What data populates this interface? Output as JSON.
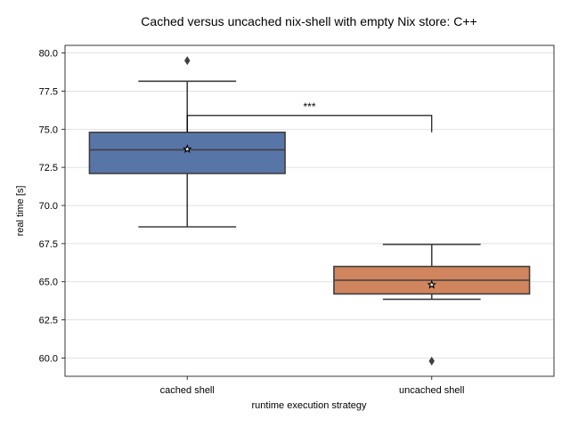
{
  "chart_data": {
    "type": "box",
    "title": "Cached versus uncached nix-shell with empty Nix store: C++",
    "xlabel": "runtime execution strategy",
    "ylabel": "real time [s]",
    "ylim": [
      58.8,
      80.5
    ],
    "yticks": [
      60.0,
      62.5,
      65.0,
      67.5,
      70.0,
      72.5,
      75.0,
      77.5,
      80.0
    ],
    "ytick_labels": [
      "60.0",
      "62.5",
      "65.0",
      "67.5",
      "70.0",
      "72.5",
      "75.0",
      "77.5",
      "80.0"
    ],
    "grid": "horizontal",
    "categories": [
      "cached shell",
      "uncached shell"
    ],
    "boxes": [
      {
        "category": "cached shell",
        "color": "#5875a8",
        "whisker_low": 68.6,
        "q1": 72.1,
        "median": 73.65,
        "q3": 74.8,
        "whisker_high": 78.15,
        "mean": 73.7,
        "outliers": [
          79.5
        ]
      },
      {
        "category": "uncached shell",
        "color": "#d0855e",
        "whisker_low": 63.85,
        "q1": 64.2,
        "median": 65.1,
        "q3": 66.0,
        "whisker_high": 67.45,
        "mean": 64.8,
        "outliers": [
          59.8
        ]
      }
    ],
    "annotations": [
      {
        "text": "***",
        "between": [
          "cached shell",
          "uncached shell"
        ],
        "bracket_y": 75.9,
        "left_end": 74.8,
        "right_end": 74.8
      }
    ]
  }
}
